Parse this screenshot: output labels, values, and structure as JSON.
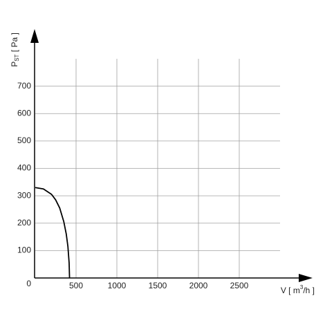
{
  "chart_data": {
    "type": "line",
    "ylabel": {
      "main": "P",
      "sub": "ST",
      "rest": " [ Pa ]"
    },
    "xlabel": {
      "main": "V [ m",
      "sup": "3",
      "rest": "/h ]"
    },
    "x": [
      0,
      100,
      200,
      250,
      300,
      350,
      380,
      400,
      415,
      420
    ],
    "series": [
      {
        "color": "#000000",
        "values": [
          330,
          325,
          305,
          285,
          255,
          205,
          160,
          115,
          55,
          0
        ]
      }
    ],
    "xlim": [
      0,
      3000
    ],
    "ylim": [
      0,
      800
    ],
    "xticks": [
      500,
      1000,
      1500,
      2000,
      2500
    ],
    "yticks": [
      0,
      100,
      200,
      300,
      400,
      500,
      600,
      700
    ],
    "grid": true
  }
}
